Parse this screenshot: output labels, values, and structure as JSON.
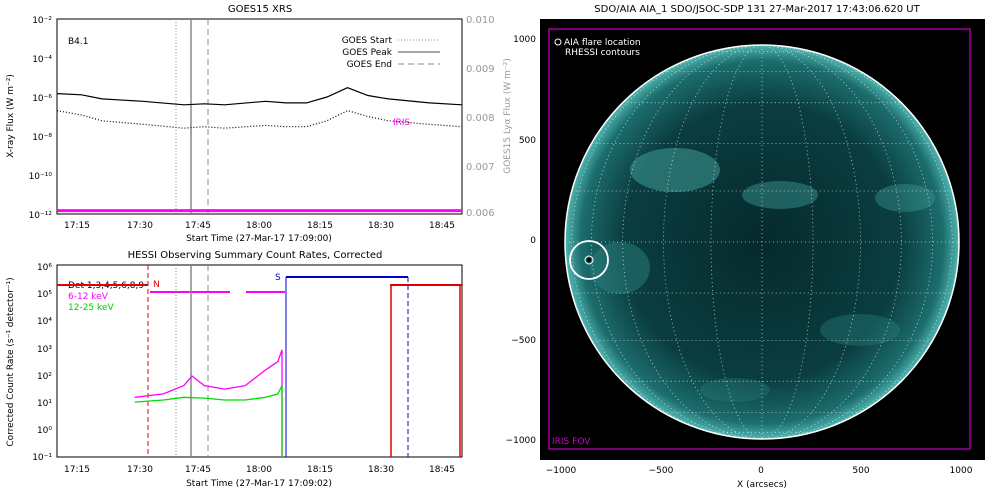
{
  "chart_data": [
    {
      "type": "line",
      "title": "GOES15 XRS",
      "xlabel": "Start Time (27-Mar-17 17:09:00)",
      "ylabel": "X-ray Flux (W m⁻²)",
      "y2label": "GOES15 Lyα Flux (W m⁻²)",
      "x_ticks": [
        "17:15",
        "17:30",
        "17:45",
        "18:00",
        "18:15",
        "18:30",
        "18:45"
      ],
      "y_ticks": [
        "10⁻²",
        "10⁻⁴",
        "10⁻⁶",
        "10⁻⁸",
        "10⁻¹⁰",
        "10⁻¹²"
      ],
      "y2_ticks": [
        "0.010",
        "0.009",
        "0.008",
        "0.007",
        "0.006"
      ],
      "ylim": [
        1e-12,
        0.01
      ],
      "y2lim": [
        0.006,
        0.01
      ],
      "yscale": "log",
      "class_label": "B4.1",
      "legend": [
        {
          "label": "GOES Start",
          "style": "dotted"
        },
        {
          "label": "GOES Peak",
          "style": "solid"
        },
        {
          "label": "GOES End",
          "style": "dashed"
        }
      ],
      "iris_label": "IRIS",
      "event_times": {
        "start": "17:39",
        "peak": "17:42",
        "end": "17:46"
      },
      "series": [
        {
          "name": "",
          "style": "solid",
          "x": [
            "17:09",
            "17:15",
            "17:20",
            "17:30",
            "17:40",
            "17:45",
            "17:50",
            "18:00",
            "18:05",
            "18:10",
            "18:15",
            "18:20",
            "18:25",
            "18:30",
            "18:40",
            "18:48"
          ],
          "y": [
            1.5e-06,
            1.3e-06,
            8e-07,
            6e-07,
            4e-07,
            4.5e-07,
            4e-07,
            6e-07,
            5e-07,
            5e-07,
            1e-06,
            3e-06,
            1.2e-06,
            8e-07,
            5e-07,
            4e-07
          ]
        },
        {
          "name": "",
          "style": "dotted",
          "x": [
            "17:09",
            "17:15",
            "17:20",
            "17:30",
            "17:40",
            "17:45",
            "17:50",
            "18:00",
            "18:05",
            "18:10",
            "18:15",
            "18:20",
            "18:25",
            "18:30",
            "18:40",
            "18:48"
          ],
          "y": [
            2e-07,
            1.2e-07,
            6e-08,
            4e-08,
            2.5e-08,
            3e-08,
            2.5e-08,
            3.5e-08,
            3e-08,
            3e-08,
            6e-08,
            2e-07,
            1e-07,
            6e-08,
            4e-08,
            3e-08
          ]
        },
        {
          "name": "IRIS",
          "style": "solid",
          "color": "#ff00ff",
          "x": [
            "17:09",
            "18:48"
          ],
          "y": [
            1.5e-12,
            1.5e-12
          ]
        }
      ]
    },
    {
      "type": "line",
      "title": "HESSI Observing Summary Count Rates, Corrected",
      "xlabel": "Start Time (27-Mar-17 17:09:02)",
      "ylabel": "Corrected Count Rate (s⁻¹ detector⁻¹)",
      "x_ticks": [
        "17:15",
        "17:30",
        "17:45",
        "18:00",
        "18:15",
        "18:30",
        "18:45"
      ],
      "y_ticks": [
        "10⁶",
        "10⁵",
        "10⁴",
        "10³",
        "10²",
        "10¹",
        "10⁰",
        "10⁻¹"
      ],
      "ylim": [
        0.1,
        1000000.0
      ],
      "yscale": "log",
      "detectors_label": "Det 1,3,4,5,6,8,9",
      "flags": {
        "N": "N",
        "S": "S"
      },
      "series": [
        {
          "name": "6-12 keV",
          "color": "#ff00ff",
          "x": [
            "17:28",
            "17:35",
            "17:40",
            "17:42",
            "17:45",
            "17:50",
            "17:55",
            "18:00",
            "18:03",
            "18:04"
          ],
          "y": [
            15,
            20,
            40,
            90,
            40,
            30,
            40,
            150,
            300,
            800
          ]
        },
        {
          "name": "12-25 keV",
          "color": "#00dd00",
          "x": [
            "17:28",
            "17:35",
            "17:40",
            "17:45",
            "17:50",
            "17:55",
            "18:00",
            "18:03",
            "18:04"
          ],
          "y": [
            10,
            12,
            15,
            14,
            12,
            12,
            15,
            20,
            40
          ]
        }
      ]
    }
  ],
  "aia": {
    "title": "SDO/AIA AIA_1 SDO/JSOC-SDP 131 27-Mar-2017 17:43:06.620 UT",
    "legend_flare": "AIA flare location",
    "legend_contours": "RHESSI contours",
    "fov_label": "IRIS FOV",
    "xlabel": "X (arcsecs)",
    "x_ticks": [
      "−1000",
      "−500",
      "0",
      "500",
      "1000"
    ],
    "y_ticks": [
      "1000",
      "500",
      "0",
      "−500",
      "−1000"
    ],
    "flare_location": [
      -840,
      -90
    ]
  }
}
